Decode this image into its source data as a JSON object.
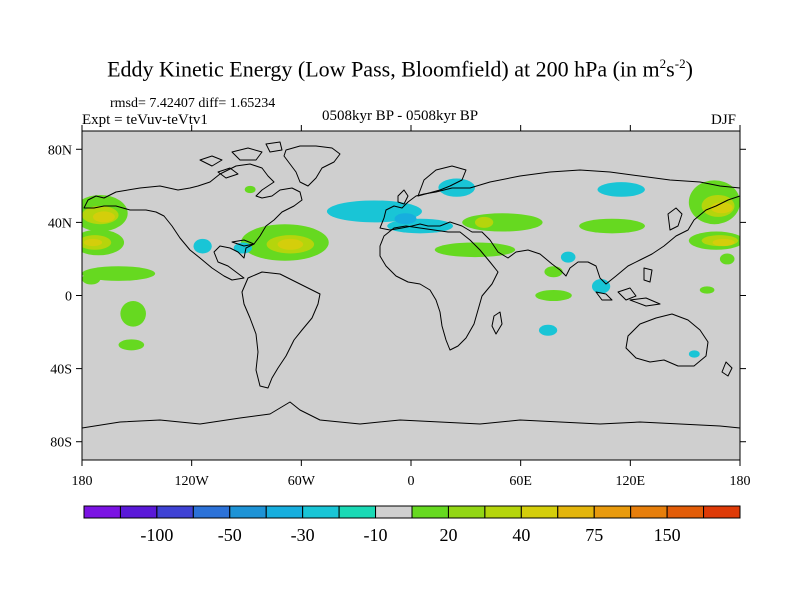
{
  "title": {
    "main": "Eddy Kinetic Energy (Low Pass, Bloomfield) at 200 hPa (in m",
    "sup1": "2",
    "mid": "s",
    "sup2": "-2",
    "end": ")"
  },
  "stats": "rmsd= 7.42407 diff= 1.65234",
  "experiment": "Expt = teVuv-teVtv1",
  "period": "0508kyr BP - 0508kyr BP",
  "season": "DJF",
  "map": {
    "lon_range": [
      -180,
      180
    ],
    "lat_range": [
      -90,
      90
    ],
    "background_color": "#cfcfcf",
    "x_ticks": [
      {
        "value": -180,
        "label": "180"
      },
      {
        "value": -120,
        "label": "120W"
      },
      {
        "value": -60,
        "label": "60W"
      },
      {
        "value": 0,
        "label": "0"
      },
      {
        "value": 60,
        "label": "60E"
      },
      {
        "value": 120,
        "label": "120E"
      },
      {
        "value": 180,
        "label": "180"
      }
    ],
    "y_ticks": [
      {
        "value": 80,
        "label": "80N"
      },
      {
        "value": 40,
        "label": "40N"
      },
      {
        "value": 0,
        "label": "0"
      },
      {
        "value": -40,
        "label": "40S"
      },
      {
        "value": -80,
        "label": "80S"
      }
    ],
    "anomalies": [
      {
        "lon": -170,
        "lat": 45,
        "rlon": 15,
        "rlat": 10,
        "level": "20"
      },
      {
        "lon": -170,
        "lat": 44,
        "rlon": 10,
        "rlat": 5,
        "level": "30"
      },
      {
        "lon": -168,
        "lat": 43,
        "rlon": 6,
        "rlat": 3,
        "level": "40"
      },
      {
        "lon": -171,
        "lat": 29,
        "rlon": 14,
        "rlat": 7,
        "level": "20"
      },
      {
        "lon": -173,
        "lat": 29,
        "rlon": 9,
        "rlat": 4,
        "level": "30"
      },
      {
        "lon": -174,
        "lat": 29,
        "rlon": 5,
        "rlat": 2,
        "level": "40"
      },
      {
        "lon": -160,
        "lat": 12,
        "rlon": 20,
        "rlat": 4,
        "level": "20"
      },
      {
        "lon": -175,
        "lat": 9,
        "rlon": 5,
        "rlat": 3,
        "level": "20"
      },
      {
        "lon": -152,
        "lat": -10,
        "rlon": 7,
        "rlat": 7,
        "level": "20"
      },
      {
        "lon": -153,
        "lat": -27,
        "rlon": 7,
        "rlat": 3,
        "level": "20"
      },
      {
        "lon": -88,
        "lat": 58,
        "rlon": 3,
        "rlat": 2,
        "level": "20"
      },
      {
        "lon": -114,
        "lat": 27,
        "rlon": 5,
        "rlat": 4,
        "level": "-10"
      },
      {
        "lon": -69,
        "lat": 29,
        "rlon": 24,
        "rlat": 10,
        "level": "20"
      },
      {
        "lon": -66,
        "lat": 28,
        "rlon": 13,
        "rlat": 5,
        "level": "30"
      },
      {
        "lon": -66,
        "lat": 28,
        "rlon": 7,
        "rlat": 3,
        "level": "40"
      },
      {
        "lon": -92,
        "lat": 26,
        "rlon": 5,
        "rlat": 3,
        "level": "-10"
      },
      {
        "lon": -20,
        "lat": 46,
        "rlon": 26,
        "rlat": 6,
        "level": "-10"
      },
      {
        "lon": 5,
        "lat": 38,
        "rlon": 18,
        "rlat": 4,
        "level": "-10"
      },
      {
        "lon": -3,
        "lat": 42,
        "rlon": 6,
        "rlat": 3,
        "level": "-20"
      },
      {
        "lon": 25,
        "lat": 59,
        "rlon": 10,
        "rlat": 5,
        "level": "-10"
      },
      {
        "lon": 50,
        "lat": 40,
        "rlon": 22,
        "rlat": 5,
        "level": "20"
      },
      {
        "lon": 40,
        "lat": 40,
        "rlon": 5,
        "rlat": 3,
        "level": "30"
      },
      {
        "lon": 35,
        "lat": 25,
        "rlon": 22,
        "rlat": 4,
        "level": "20"
      },
      {
        "lon": 115,
        "lat": 58,
        "rlon": 13,
        "rlat": 4,
        "level": "-10"
      },
      {
        "lon": 110,
        "lat": 38,
        "rlon": 18,
        "rlat": 4,
        "level": "20"
      },
      {
        "lon": 86,
        "lat": 21,
        "rlon": 4,
        "rlat": 3,
        "level": "-10"
      },
      {
        "lon": 78,
        "lat": 13,
        "rlon": 5,
        "rlat": 3,
        "level": "20"
      },
      {
        "lon": 104,
        "lat": 5,
        "rlon": 5,
        "rlat": 4,
        "level": "-10"
      },
      {
        "lon": 78,
        "lat": 0,
        "rlon": 10,
        "rlat": 3,
        "level": "20"
      },
      {
        "lon": 75,
        "lat": -19,
        "rlon": 5,
        "rlat": 3,
        "level": "-10"
      },
      {
        "lon": 155,
        "lat": -32,
        "rlon": 3,
        "rlat": 2,
        "level": "-10"
      },
      {
        "lon": 166,
        "lat": 51,
        "rlon": 14,
        "rlat": 12,
        "level": "20"
      },
      {
        "lon": 168,
        "lat": 49,
        "rlon": 9,
        "rlat": 6,
        "level": "30"
      },
      {
        "lon": 170,
        "lat": 48,
        "rlon": 6,
        "rlat": 3,
        "level": "40"
      },
      {
        "lon": 167,
        "lat": 30,
        "rlon": 15,
        "rlat": 5,
        "level": "20"
      },
      {
        "lon": 169,
        "lat": 30,
        "rlon": 10,
        "rlat": 3,
        "level": "30"
      },
      {
        "lon": 171,
        "lat": 29,
        "rlon": 6,
        "rlat": 2,
        "level": "40"
      },
      {
        "lon": 173,
        "lat": 20,
        "rlon": 4,
        "rlat": 3,
        "level": "20"
      },
      {
        "lon": 162,
        "lat": 3,
        "rlon": 4,
        "rlat": 2,
        "level": "20"
      }
    ]
  },
  "colorbar": {
    "colors": [
      "#7b13e3",
      "#5a19d8",
      "#3f42d4",
      "#2c72d8",
      "#1e93d6",
      "#17aede",
      "#19c5d6",
      "#1ad9b5",
      "#d0d0d0",
      "#66d920",
      "#92d615",
      "#b5d50c",
      "#d4ce0b",
      "#e3b50c",
      "#e89a0d",
      "#e67e0b",
      "#e25c08",
      "#de3a07"
    ],
    "levels": [
      "-100",
      "-50",
      "-30",
      "-10",
      "20",
      "40",
      "75",
      "150"
    ],
    "fill_levels": {
      "-20": "#17aede",
      "-10": "#19c5d6",
      "20": "#66d920",
      "30": "#b5d50c",
      "40": "#d4ce0b"
    }
  }
}
